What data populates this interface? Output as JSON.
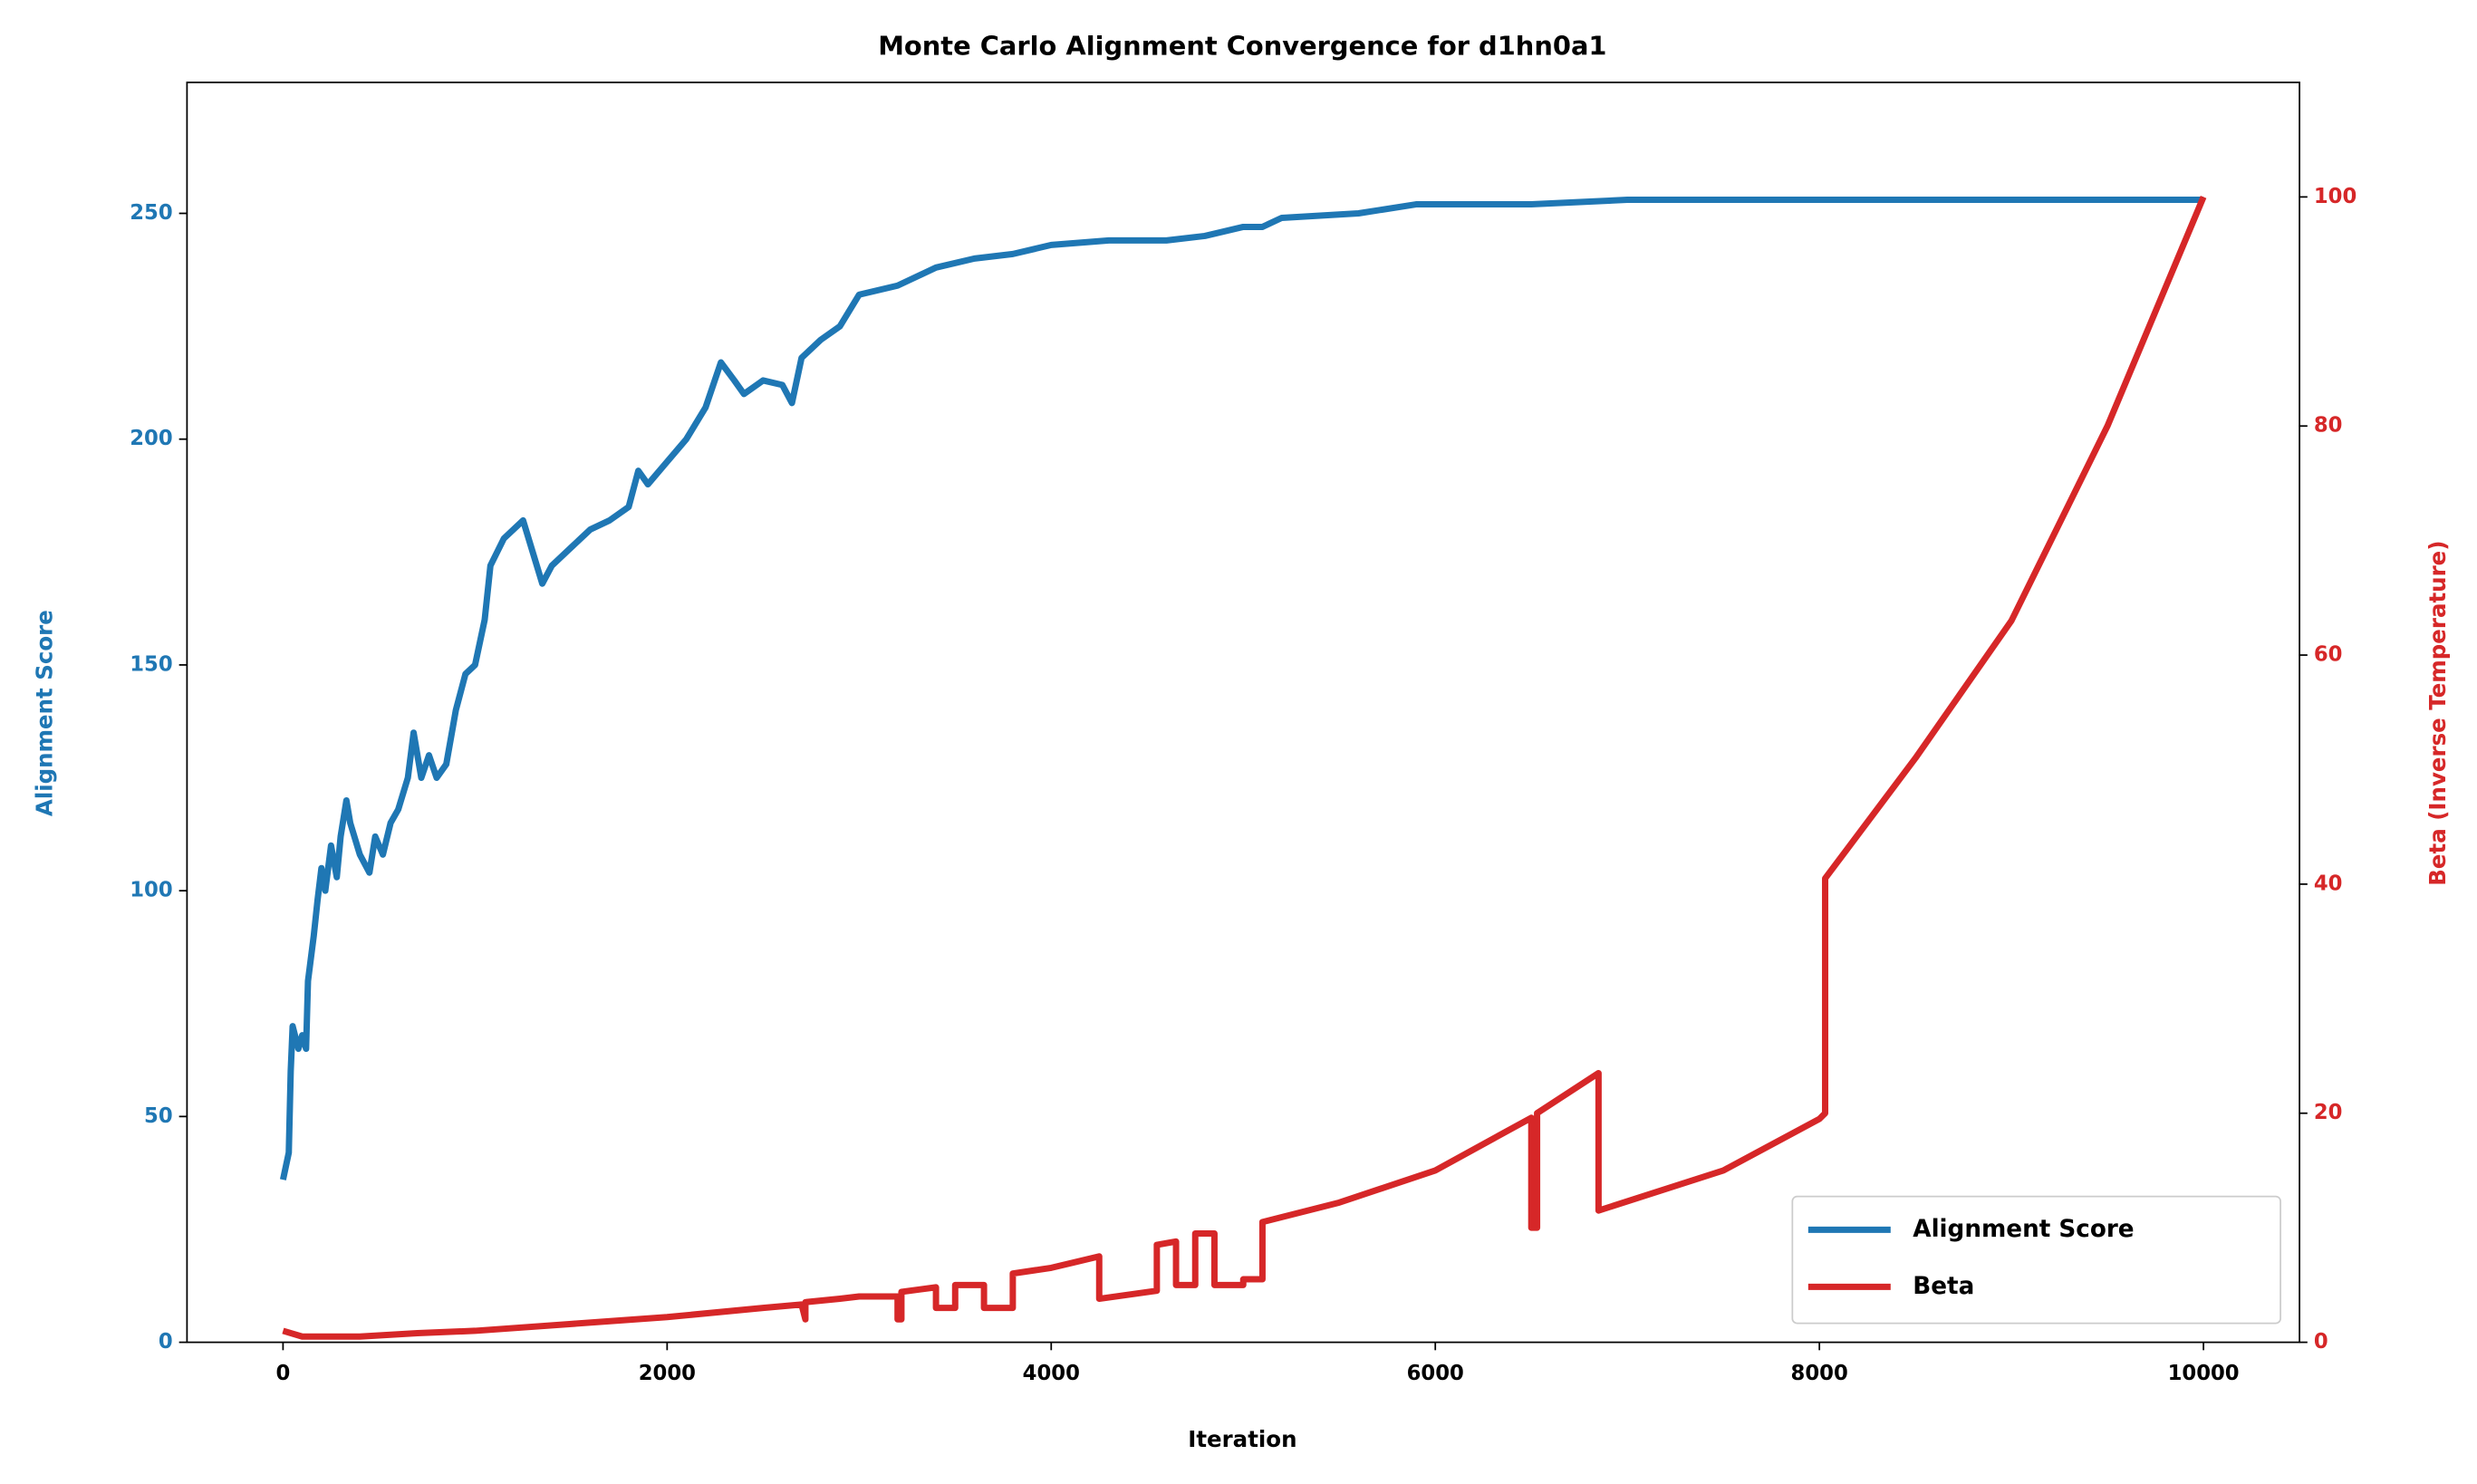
{
  "chart_data": {
    "type": "line",
    "title": "Monte Carlo Alignment Convergence for d1hn0a1",
    "x_label": "Iteration",
    "y_label": "Alignment Score",
    "y2_label": "Beta (Inverse Temperature)",
    "xlim": [
      -500,
      10500
    ],
    "xticks": [
      0,
      2000,
      4000,
      6000,
      8000,
      10000
    ],
    "ylim": [
      0,
      279
    ],
    "yticks": [
      0,
      50,
      100,
      150,
      200,
      250
    ],
    "y2lim": [
      0,
      110
    ],
    "y2ticks": [
      0,
      20,
      40,
      60,
      80,
      100
    ],
    "legend": "lower right",
    "series": [
      {
        "name": "Alignment Score",
        "color": "#1f77b4",
        "x": [
          0,
          30,
          40,
          50,
          80,
          100,
          120,
          130,
          160,
          180,
          200,
          220,
          250,
          280,
          300,
          330,
          350,
          400,
          450,
          480,
          520,
          560,
          600,
          650,
          680,
          720,
          760,
          800,
          850,
          900,
          950,
          1000,
          1050,
          1080,
          1150,
          1250,
          1300,
          1350,
          1400,
          1500,
          1600,
          1700,
          1800,
          1850,
          1900,
          2000,
          2100,
          2200,
          2280,
          2350,
          2400,
          2500,
          2600,
          2650,
          2700,
          2800,
          2900,
          3000,
          3200,
          3400,
          3600,
          3800,
          4000,
          4300,
          4600,
          4800,
          5000,
          5100,
          5200,
          5600,
          5900,
          6500,
          7000,
          8000,
          9000,
          10000
        ],
        "values": [
          36,
          42,
          60,
          70,
          65,
          68,
          65,
          80,
          90,
          98,
          105,
          100,
          110,
          103,
          112,
          120,
          115,
          108,
          104,
          112,
          108,
          115,
          118,
          125,
          135,
          125,
          130,
          125,
          128,
          140,
          148,
          150,
          160,
          172,
          178,
          182,
          175,
          168,
          172,
          176,
          180,
          182,
          185,
          193,
          190,
          195,
          200,
          207,
          217,
          213,
          210,
          213,
          212,
          208,
          218,
          222,
          225,
          232,
          234,
          238,
          240,
          241,
          243,
          244,
          244,
          245,
          247,
          247,
          249,
          250,
          252,
          252,
          253,
          253,
          253,
          253
        ]
      },
      {
        "name": "Beta",
        "color": "#d62728",
        "axis": "y2",
        "x": [
          0,
          100,
          400,
          700,
          1000,
          1500,
          2000,
          2500,
          2700,
          2720,
          2720,
          2900,
          3000,
          3200,
          3200,
          3220,
          3220,
          3400,
          3400,
          3500,
          3500,
          3650,
          3650,
          3800,
          3800,
          4000,
          4250,
          4250,
          4550,
          4550,
          4650,
          4650,
          4750,
          4750,
          4850,
          4850,
          5000,
          5000,
          5100,
          5100,
          5500,
          6000,
          6500,
          6500,
          6530,
          6530,
          6850,
          6850,
          7500,
          8000,
          8030,
          8030,
          8500,
          9000,
          9500,
          10000
        ],
        "values": [
          1,
          0.5,
          0.5,
          0.8,
          1,
          1.6,
          2.2,
          3,
          3.3,
          2,
          3.5,
          3.8,
          4,
          4,
          2,
          2,
          4.4,
          4.8,
          3,
          3,
          5,
          5,
          3,
          3,
          6,
          6.5,
          7.5,
          3.8,
          4.5,
          8.5,
          8.8,
          5,
          5,
          9.5,
          9.5,
          5,
          5,
          5.5,
          5.5,
          10.5,
          12.2,
          15,
          19.6,
          10,
          10,
          20,
          23.5,
          11.5,
          15,
          19.5,
          20,
          40.5,
          51,
          63,
          80,
          100
        ]
      }
    ]
  }
}
